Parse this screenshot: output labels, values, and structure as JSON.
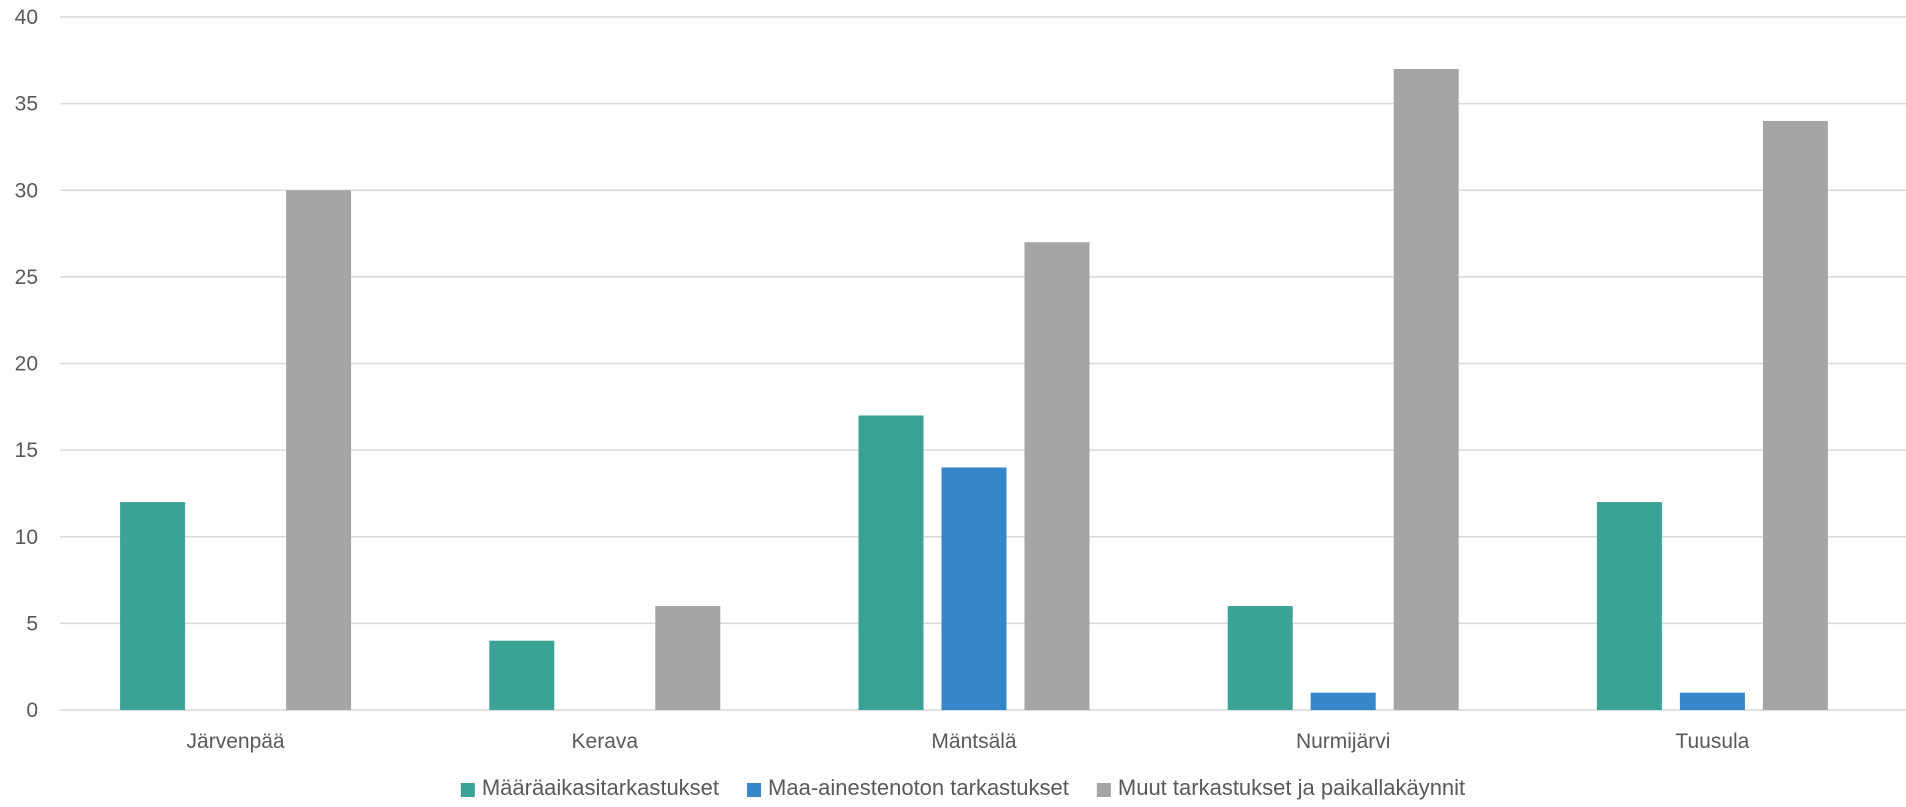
{
  "chart_data": {
    "type": "bar",
    "categories": [
      "Järvenpää",
      "Kerava",
      "Mäntsälä",
      "Nurmijärvi",
      "Tuusula"
    ],
    "series": [
      {
        "name": "Määräaikasitarkastukset",
        "values": [
          12,
          4,
          17,
          6,
          12
        ],
        "color": "#3aa395"
      },
      {
        "name": "Maa-ainestenoton tarkastukset",
        "values": [
          0,
          0,
          14,
          1,
          1
        ],
        "color": "#3587c9"
      },
      {
        "name": "Muut tarkastukset ja paikallakäynnit",
        "values": [
          30,
          6,
          27,
          37,
          34
        ],
        "color": "#a5a5a5"
      }
    ],
    "yticks": [
      "0",
      "5",
      "10",
      "15",
      "20",
      "25",
      "30",
      "35",
      "40"
    ],
    "ylim": [
      0,
      40
    ],
    "grid": true,
    "legend_position": "bottom",
    "title": "",
    "xlabel": "",
    "ylabel": ""
  }
}
